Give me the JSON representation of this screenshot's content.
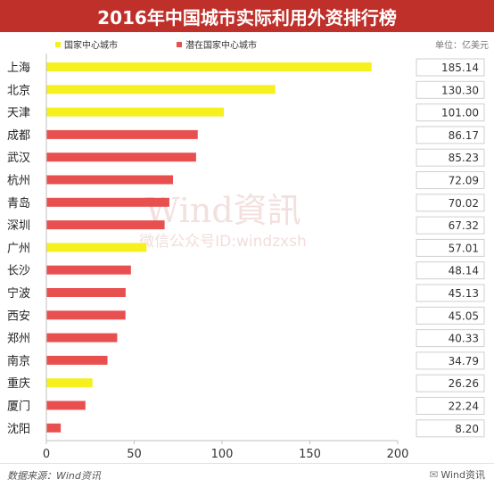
{
  "chart_data": {
    "type": "bar",
    "orientation": "horizontal",
    "title": "2016年中国城市实际利用外资排行榜",
    "unit_label": "单位：亿美元",
    "categories": [
      "上海",
      "北京",
      "天津",
      "成都",
      "武汉",
      "杭州",
      "青岛",
      "深圳",
      "广州",
      "长沙",
      "宁波",
      "西安",
      "郑州",
      "南京",
      "重庆",
      "厦门",
      "沈阳"
    ],
    "values": [
      185.14,
      130.3,
      101.0,
      86.17,
      85.23,
      72.09,
      70.02,
      67.32,
      57.01,
      48.14,
      45.13,
      45.05,
      40.33,
      34.79,
      26.26,
      22.24,
      8.2
    ],
    "value_labels": [
      "185.14",
      "130.30",
      "101.00",
      "86.17",
      "85.23",
      "72.09",
      "70.02",
      "67.32",
      "57.01",
      "48.14",
      "45.13",
      "45.05",
      "40.33",
      "34.79",
      "26.26",
      "22.24",
      "8.20"
    ],
    "groups": [
      "national",
      "national",
      "national",
      "potential",
      "potential",
      "potential",
      "potential",
      "potential",
      "national",
      "potential",
      "potential",
      "potential",
      "potential",
      "potential",
      "national",
      "potential",
      "potential"
    ],
    "legend": [
      {
        "key": "national",
        "name": "国家中心城市",
        "color": "#f5f01e"
      },
      {
        "key": "potential",
        "name": "潜在国家中心城市",
        "color": "#e8504f"
      }
    ],
    "xlim": [
      0,
      200
    ],
    "xticks": [
      0,
      50,
      100,
      150,
      200
    ],
    "legend_position": "top-left",
    "grid": false
  },
  "colors": {
    "title_bg": "#c0302a",
    "title_text": "#ffffff"
  },
  "watermark": {
    "line1": "Wind資訊",
    "line2": "微信公众号ID:windzxsh"
  },
  "footer": {
    "source": "数据来源：Wind资讯",
    "brand": "Wind资讯",
    "brand_icon": "wechat-icon"
  }
}
